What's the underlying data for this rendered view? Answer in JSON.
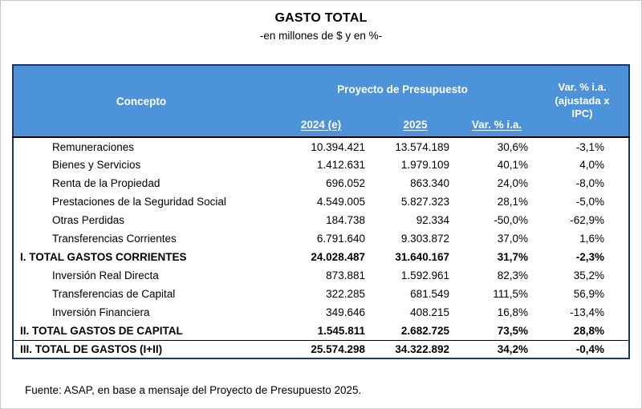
{
  "title": "GASTO TOTAL",
  "subtitle": "-en millones de $ y en %-",
  "footer": "Fuente: ASAP, en base a mensaje del Proyecto de Presupuesto 2025.",
  "colors": {
    "header_bg": "#4D93D9",
    "header_text": "#FFFFFF",
    "table_border": "#1F3864",
    "body_text": "#000000"
  },
  "table": {
    "concepto_header": "Concepto",
    "group_header": "Proyecto de Presupuesto",
    "adjusted_header": "Var. % i.a. (ajustada x IPC)",
    "sub_headers": [
      "2024 (e)",
      "2025",
      "Var. % i.a."
    ],
    "rows": [
      {
        "label": "Remuneraciones",
        "v2024": "10.394.421",
        "v2025": "13.574.189",
        "var_ia": "30,6%",
        "var_ipc": "-3,1%",
        "bold": false,
        "topline": false
      },
      {
        "label": "Bienes y Servicios",
        "v2024": "1.412.631",
        "v2025": "1.979.109",
        "var_ia": "40,1%",
        "var_ipc": "4,0%",
        "bold": false,
        "topline": false
      },
      {
        "label": "Renta de la Propiedad",
        "v2024": "696.052",
        "v2025": "863.340",
        "var_ia": "24,0%",
        "var_ipc": "-8,0%",
        "bold": false,
        "topline": false
      },
      {
        "label": "Prestaciones de la Seguridad Social",
        "v2024": "4.549.005",
        "v2025": "5.827.323",
        "var_ia": "28,1%",
        "var_ipc": "-5,0%",
        "bold": false,
        "topline": false
      },
      {
        "label": "Otras Perdidas",
        "v2024": "184.738",
        "v2025": "92.334",
        "var_ia": "-50,0%",
        "var_ipc": "-62,9%",
        "bold": false,
        "topline": false
      },
      {
        "label": "Transferencias Corrientes",
        "v2024": "6.791.640",
        "v2025": "9.303.872",
        "var_ia": "37,0%",
        "var_ipc": "1,6%",
        "bold": false,
        "topline": false
      },
      {
        "label": "I. TOTAL GASTOS CORRIENTES",
        "v2024": "24.028.487",
        "v2025": "31.640.167",
        "var_ia": "31,7%",
        "var_ipc": "-2,3%",
        "bold": true,
        "topline": false
      },
      {
        "label": "Inversión Real Directa",
        "v2024": "873.881",
        "v2025": "1.592.961",
        "var_ia": "82,3%",
        "var_ipc": "35,2%",
        "bold": false,
        "topline": false
      },
      {
        "label": "Transferencias de Capital",
        "v2024": "322.285",
        "v2025": "681.549",
        "var_ia": "111,5%",
        "var_ipc": "56,9%",
        "bold": false,
        "topline": false
      },
      {
        "label": "Inversión Financiera",
        "v2024": "349.646",
        "v2025": "408.215",
        "var_ia": "16,8%",
        "var_ipc": "-13,4%",
        "bold": false,
        "topline": false
      },
      {
        "label": "II. TOTAL GASTOS DE CAPITAL",
        "v2024": "1.545.811",
        "v2025": "2.682.725",
        "var_ia": "73,5%",
        "var_ipc": "28,8%",
        "bold": true,
        "topline": false
      },
      {
        "label": "III. TOTAL DE GASTOS (I+II)",
        "v2024": "25.574.298",
        "v2025": "34.322.892",
        "var_ia": "34,2%",
        "var_ipc": "-0,4%",
        "bold": true,
        "topline": true
      }
    ]
  },
  "chart_data": {
    "type": "table",
    "title": "GASTO TOTAL",
    "subtitle": "-en millones de $ y en %-",
    "units": "millones de $ y %",
    "columns": [
      "Concepto",
      "2024 (e)",
      "2025",
      "Var. % i.a.",
      "Var. % i.a. (ajustada x IPC)"
    ],
    "rows": [
      [
        "Remuneraciones",
        10394421,
        13574189,
        30.6,
        -3.1
      ],
      [
        "Bienes y Servicios",
        1412631,
        1979109,
        40.1,
        4.0
      ],
      [
        "Renta de la Propiedad",
        696052,
        863340,
        24.0,
        -8.0
      ],
      [
        "Prestaciones de la Seguridad Social",
        4549005,
        5827323,
        28.1,
        -5.0
      ],
      [
        "Otras Perdidas",
        184738,
        92334,
        -50.0,
        -62.9
      ],
      [
        "Transferencias Corrientes",
        6791640,
        9303872,
        37.0,
        1.6
      ],
      [
        "I. TOTAL GASTOS CORRIENTES",
        24028487,
        31640167,
        31.7,
        -2.3
      ],
      [
        "Inversión Real Directa",
        873881,
        1592961,
        82.3,
        35.2
      ],
      [
        "Transferencias de Capital",
        322285,
        681549,
        111.5,
        56.9
      ],
      [
        "Inversión Financiera",
        349646,
        408215,
        16.8,
        -13.4
      ],
      [
        "II. TOTAL GASTOS DE CAPITAL",
        1545811,
        2682725,
        73.5,
        28.8
      ],
      [
        "III. TOTAL DE GASTOS (I+II)",
        25574298,
        34322892,
        34.2,
        -0.4
      ]
    ],
    "source": "Fuente: ASAP, en base a mensaje del Proyecto de Presupuesto 2025."
  }
}
